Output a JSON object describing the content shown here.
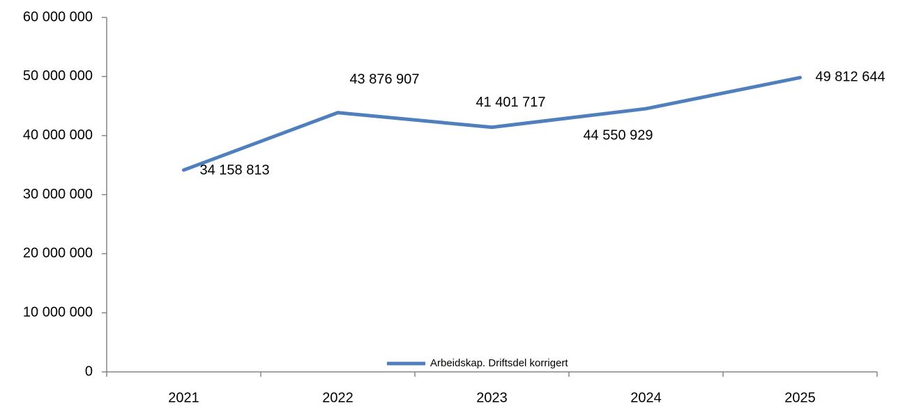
{
  "chart_data": {
    "type": "line",
    "categories": [
      "2021",
      "2022",
      "2023",
      "2024",
      "2025"
    ],
    "series": [
      {
        "name": "Arbeidskap. Driftsdel korrigert",
        "color": "#4f7fbd",
        "values": [
          34158813,
          43876907,
          41401717,
          44550929,
          49812644
        ],
        "value_labels": [
          "34 158 813",
          "43 876 907",
          "41 401 717",
          "44 550 929",
          "49 812 644"
        ]
      }
    ],
    "ylim": [
      0,
      60000000
    ],
    "yticks": [
      0,
      {
        "value": 10000000,
        "label": "10 000 000"
      },
      {
        "value": 20000000,
        "label": "20 000 000"
      },
      {
        "value": 30000000,
        "label": "30 000 000"
      },
      {
        "value": 40000000,
        "label": "40 000 000"
      },
      {
        "value": 50000000,
        "label": "50 000 000"
      },
      {
        "value": 60000000,
        "label": "60 000 000"
      }
    ],
    "legend": "bottom"
  }
}
